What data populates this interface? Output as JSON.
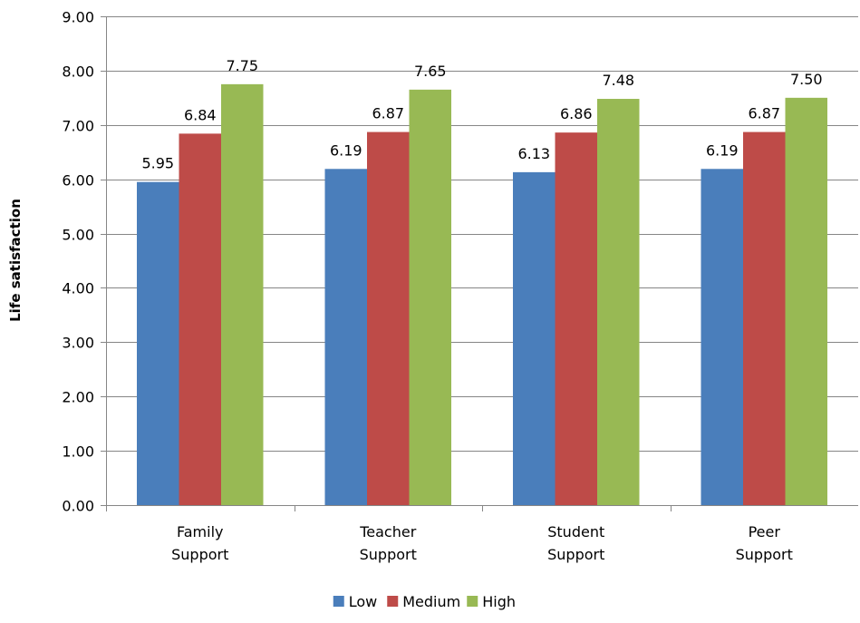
{
  "chart_data": {
    "type": "bar",
    "title": "",
    "xlabel": "",
    "ylabel": "Life satisfaction",
    "ylim": [
      0,
      9
    ],
    "ytick_step": 1,
    "ytick_format_decimals": 2,
    "grid": "horizontal",
    "legend_position": "bottom",
    "categories": [
      [
        "Family",
        "Support"
      ],
      [
        "Teacher",
        "Support"
      ],
      [
        "Student",
        "Support"
      ],
      [
        "Peer",
        "Support"
      ]
    ],
    "series": [
      {
        "name": "Low",
        "color": "#4a7ebb",
        "values": [
          5.95,
          6.19,
          6.13,
          6.19
        ],
        "labels": [
          "5.95",
          "6.19",
          "6.13",
          "6.19"
        ]
      },
      {
        "name": "Medium",
        "color": "#be4b48",
        "values": [
          6.84,
          6.87,
          6.86,
          6.87
        ],
        "labels": [
          "6.84",
          "6.87",
          "6.86",
          "6.87"
        ]
      },
      {
        "name": "High",
        "color": "#98b954",
        "values": [
          7.75,
          7.65,
          7.48,
          7.5
        ],
        "labels": [
          "7.75",
          "7.65",
          "7.48",
          "7.50"
        ]
      }
    ]
  }
}
